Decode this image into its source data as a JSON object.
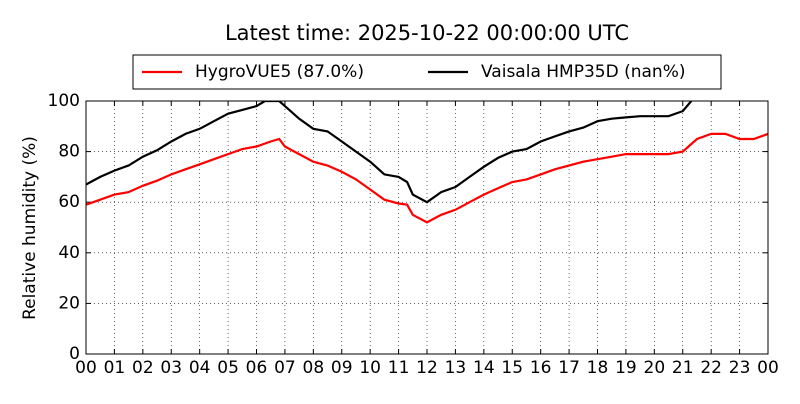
{
  "chart_data": {
    "type": "line",
    "title": "Latest time: 2025-10-22 00:00:00 UTC",
    "ylabel": "Relative humidity (%)",
    "xlim": [
      0,
      24
    ],
    "xticks": [
      {
        "value": 0,
        "label": "00"
      },
      {
        "value": 1,
        "label": "01"
      },
      {
        "value": 2,
        "label": "02"
      },
      {
        "value": 3,
        "label": "03"
      },
      {
        "value": 4,
        "label": "04"
      },
      {
        "value": 5,
        "label": "05"
      },
      {
        "value": 6,
        "label": "06"
      },
      {
        "value": 7,
        "label": "07"
      },
      {
        "value": 8,
        "label": "08"
      },
      {
        "value": 9,
        "label": "09"
      },
      {
        "value": 10,
        "label": "10"
      },
      {
        "value": 11,
        "label": "11"
      },
      {
        "value": 12,
        "label": "12"
      },
      {
        "value": 13,
        "label": "13"
      },
      {
        "value": 14,
        "label": "14"
      },
      {
        "value": 15,
        "label": "15"
      },
      {
        "value": 16,
        "label": "16"
      },
      {
        "value": 17,
        "label": "17"
      },
      {
        "value": 18,
        "label": "18"
      },
      {
        "value": 19,
        "label": "19"
      },
      {
        "value": 20,
        "label": "20"
      },
      {
        "value": 21,
        "label": "21"
      },
      {
        "value": 22,
        "label": "22"
      },
      {
        "value": 23,
        "label": "23"
      },
      {
        "value": 24,
        "label": "00"
      }
    ],
    "ylim": [
      0,
      100
    ],
    "yticks": [
      0,
      20,
      40,
      60,
      80,
      100
    ],
    "grid": true,
    "legend": "top",
    "series": [
      {
        "name": "HygroVUE5 (87.0%)",
        "color": "#ff0000",
        "x": [
          0,
          0.5,
          1,
          1.5,
          2,
          2.5,
          3,
          3.5,
          4,
          4.5,
          5,
          5.5,
          6,
          6.5,
          6.8,
          7,
          7.5,
          8,
          8.5,
          9,
          9.5,
          10,
          10.5,
          11,
          11.3,
          11.5,
          12,
          12.5,
          13,
          13.5,
          14,
          14.5,
          15,
          15.5,
          16,
          16.5,
          17,
          17.5,
          18,
          18.5,
          19,
          19.5,
          20,
          20.5,
          21,
          21.5,
          22,
          22.5,
          23,
          23.5,
          24
        ],
        "values": [
          59,
          61,
          63,
          64,
          66.5,
          68.5,
          71,
          73,
          75,
          77,
          79,
          81,
          82,
          84,
          85,
          82,
          79,
          76,
          74.5,
          72,
          69,
          65,
          61,
          59.5,
          59,
          55,
          52,
          55,
          57,
          60,
          63,
          65.5,
          68,
          69,
          71,
          73,
          74.5,
          76,
          77,
          78,
          79,
          79,
          79,
          79,
          80,
          85,
          87,
          87,
          85,
          85,
          87
        ]
      },
      {
        "name": "Vaisala HMP35D (nan%)",
        "color": "#000000",
        "x": [
          0,
          0.5,
          1,
          1.5,
          2,
          2.5,
          3,
          3.5,
          4,
          4.5,
          5,
          5.5,
          6,
          6.3,
          6.8,
          7,
          7.5,
          8,
          8.5,
          9,
          9.5,
          10,
          10.5,
          11,
          11.3,
          11.5,
          12,
          12.5,
          13,
          13.5,
          14,
          14.5,
          15,
          15.5,
          16,
          16.5,
          17,
          17.5,
          18,
          18.5,
          19,
          19.5,
          20,
          20.5,
          21,
          21.3
        ],
        "values": [
          67,
          70,
          72.5,
          74.5,
          78,
          80.5,
          84,
          87,
          89,
          92,
          95,
          96.5,
          98,
          100,
          100,
          98,
          93,
          89,
          88,
          84,
          80,
          76,
          71,
          70,
          68,
          63,
          60,
          64,
          66,
          70,
          74,
          77.5,
          80,
          81,
          84,
          86,
          88,
          89.5,
          92,
          93,
          93.5,
          94,
          94,
          94,
          96,
          100
        ]
      }
    ]
  }
}
